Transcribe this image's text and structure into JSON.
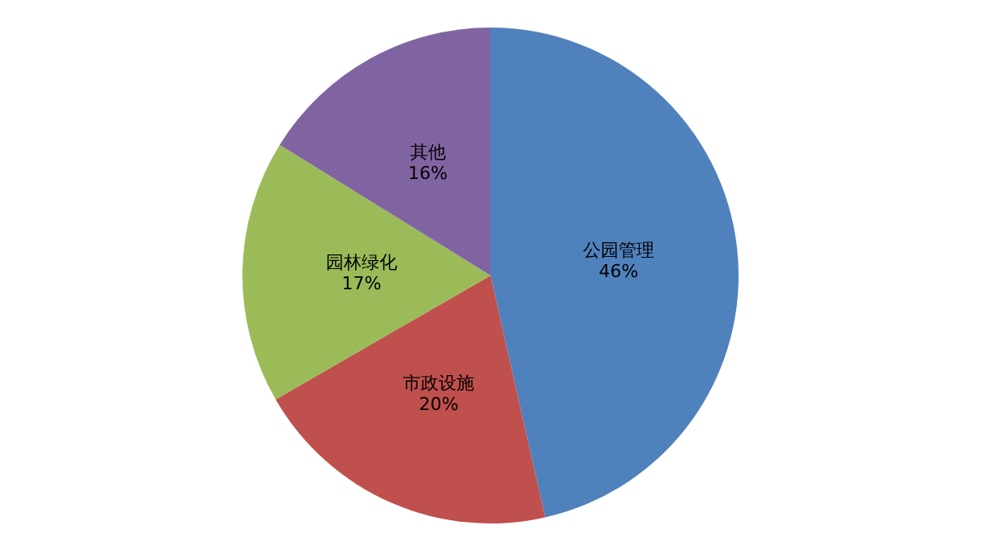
{
  "chart_data": {
    "type": "pie",
    "categories": [
      "公园管理",
      "市政设施",
      "园林绿化",
      "其他"
    ],
    "values": [
      46,
      20,
      17,
      16
    ],
    "colors": [
      "#4f81bd",
      "#c0504d",
      "#9bbb59",
      "#8064a2"
    ],
    "value_labels": [
      "46%",
      "20%",
      "17%",
      "16%"
    ],
    "legend": false
  }
}
